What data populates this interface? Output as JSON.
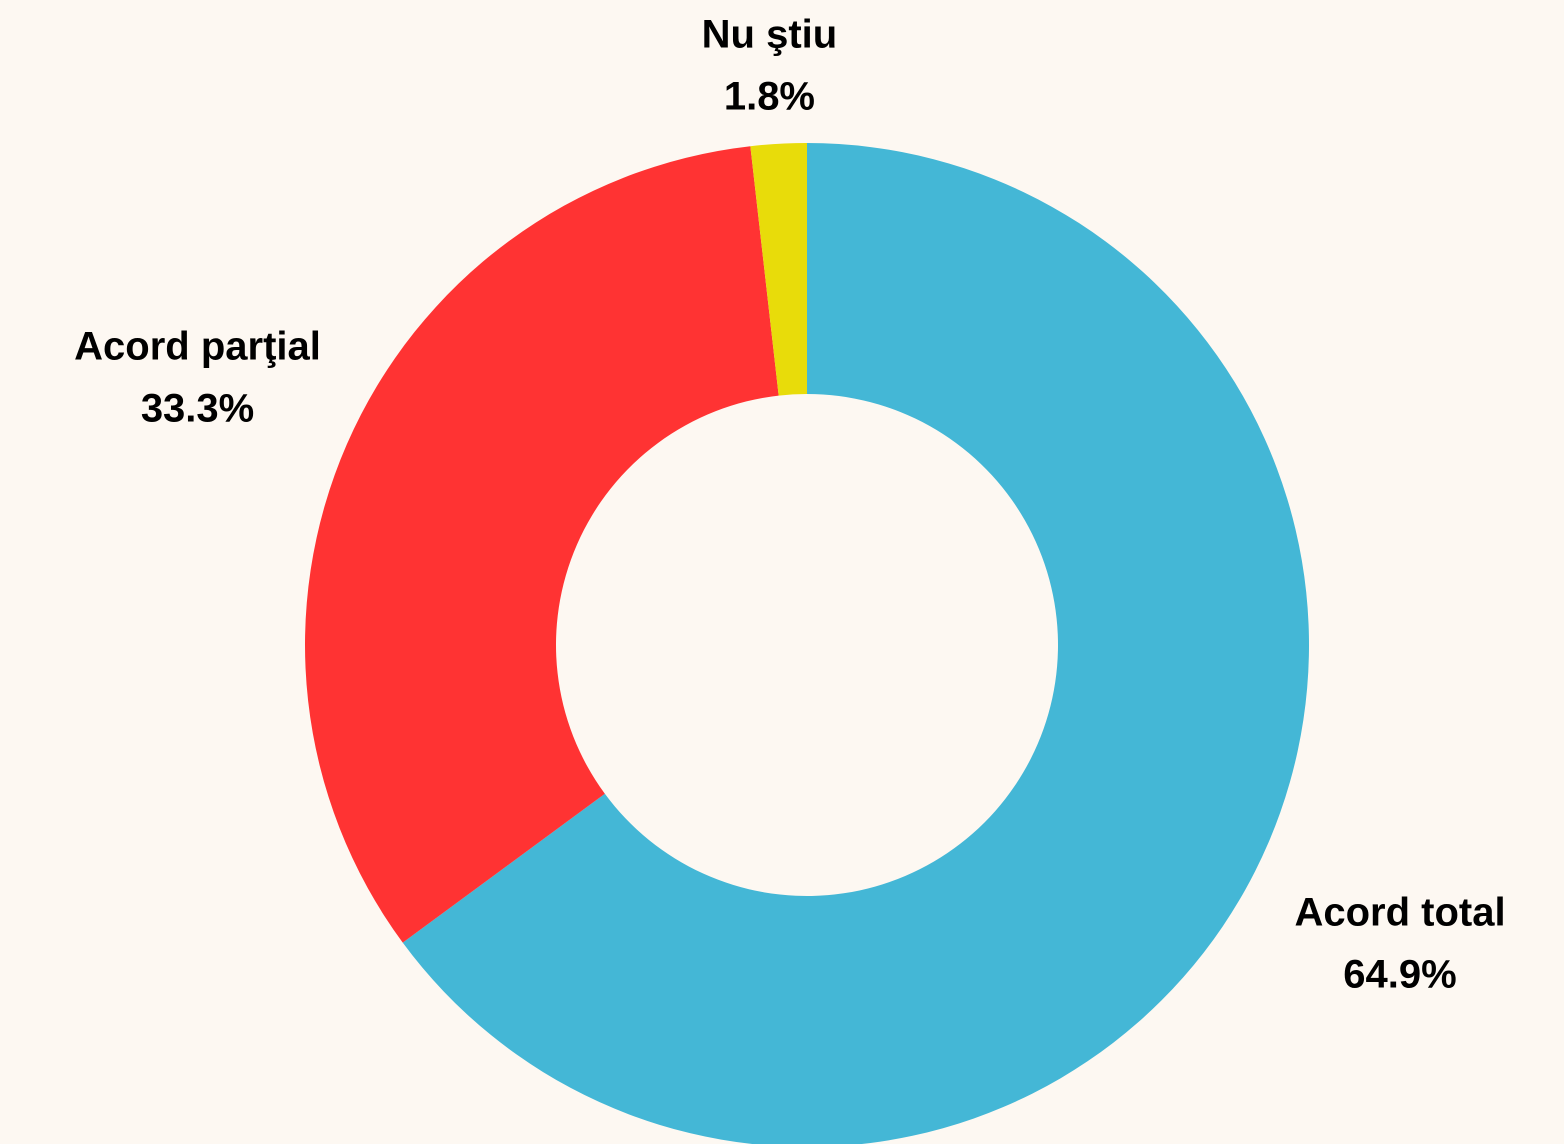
{
  "chart_data": {
    "type": "donut",
    "categories": [
      "Acord total",
      "Acord parţial",
      "Nu ştiu"
    ],
    "values": [
      64.9,
      33.3,
      1.8
    ],
    "value_labels": [
      "64.9%",
      "33.3%",
      "1.8%"
    ],
    "colors": [
      "#44b7d6",
      "#ff3333",
      "#e8dc0a"
    ]
  }
}
